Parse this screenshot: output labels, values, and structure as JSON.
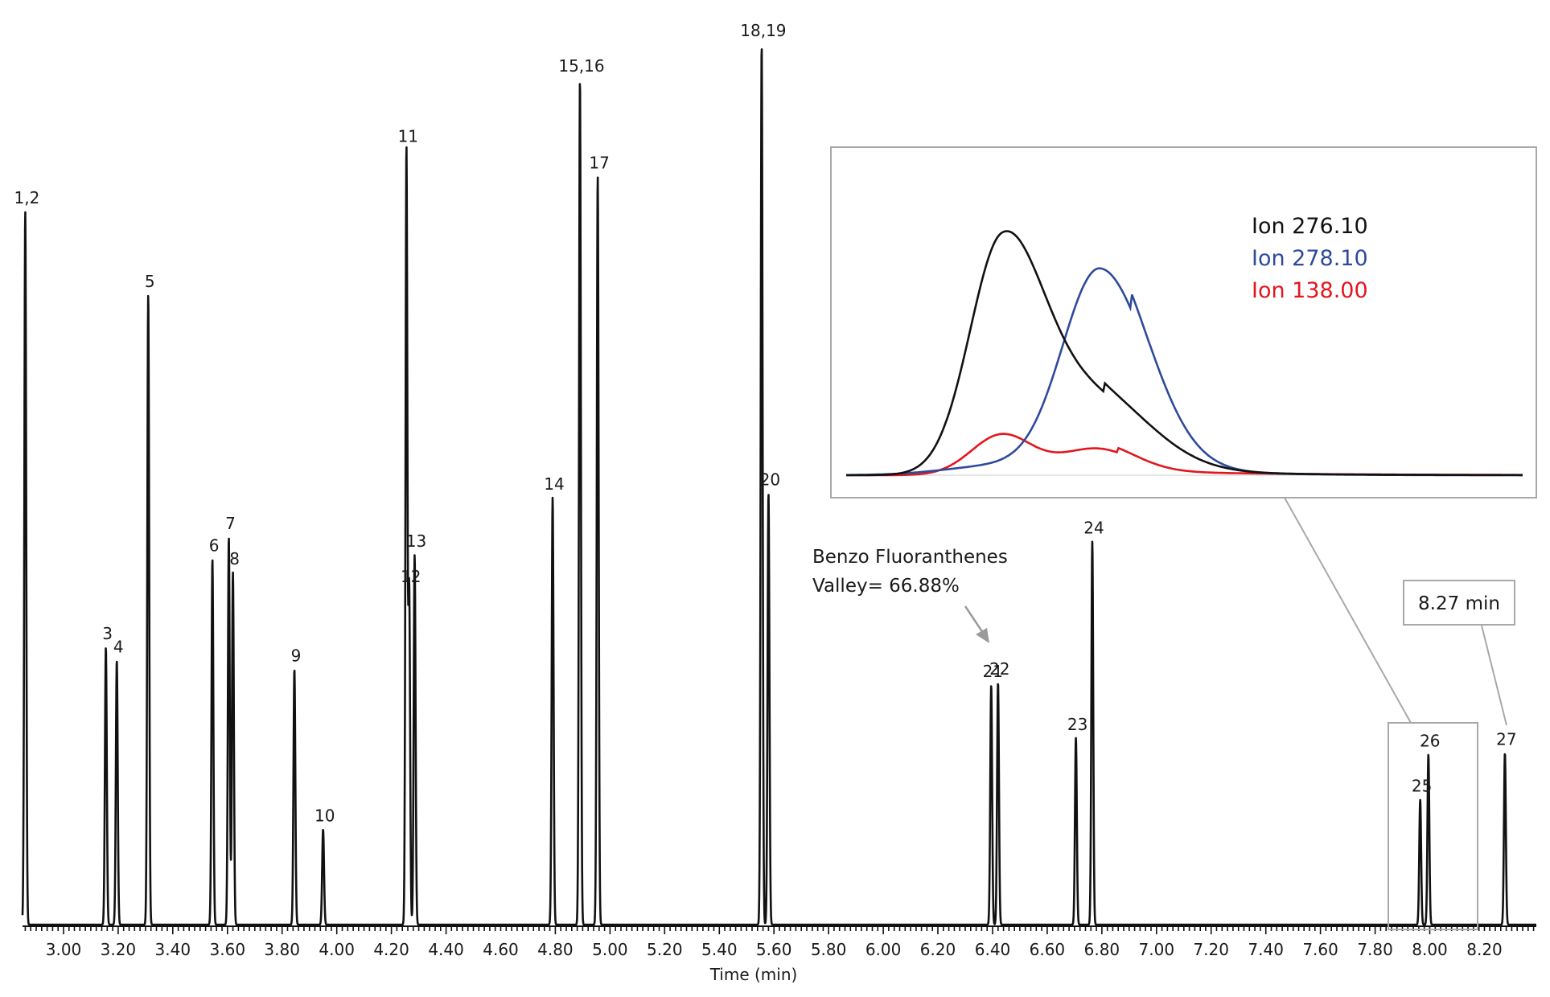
{
  "chart_data": {
    "type": "line",
    "xlabel": "Time (min)",
    "xticks": [
      "3.00",
      "3.20",
      "3.40",
      "3.60",
      "3.80",
      "4.00",
      "4.20",
      "4.40",
      "4.60",
      "4.80",
      "5.00",
      "5.20",
      "5.40",
      "5.60",
      "5.80",
      "6.00",
      "6.20",
      "6.40",
      "6.60",
      "6.80",
      "7.00",
      "7.20",
      "7.40",
      "7.60",
      "7.80",
      "8.00",
      "8.20"
    ],
    "xlim": [
      2.85,
      8.39
    ],
    "peaks": [
      {
        "label": "1,2",
        "rt": 2.86,
        "height": 0.81
      },
      {
        "label": "3",
        "rt": 3.155,
        "height": 0.315
      },
      {
        "label": "4",
        "rt": 3.195,
        "height": 0.3
      },
      {
        "label": "5",
        "rt": 3.31,
        "height": 0.715
      },
      {
        "label": "6",
        "rt": 3.545,
        "height": 0.415
      },
      {
        "label": "7",
        "rt": 3.605,
        "height": 0.44
      },
      {
        "label": "8",
        "rt": 3.62,
        "height": 0.4
      },
      {
        "label": "9",
        "rt": 3.845,
        "height": 0.29
      },
      {
        "label": "10",
        "rt": 3.95,
        "height": 0.108
      },
      {
        "label": "11",
        "rt": 4.255,
        "height": 0.88
      },
      {
        "label": "12",
        "rt": 4.265,
        "height": 0.38
      },
      {
        "label": "13",
        "rt": 4.285,
        "height": 0.42
      },
      {
        "label": "14",
        "rt": 4.79,
        "height": 0.485
      },
      {
        "label": "15,16",
        "rt": 4.89,
        "height": 0.96
      },
      {
        "label": "17",
        "rt": 4.955,
        "height": 0.85
      },
      {
        "label": "18,19",
        "rt": 5.555,
        "height": 1.0
      },
      {
        "label": "20",
        "rt": 5.58,
        "height": 0.49
      },
      {
        "label": "21",
        "rt": 6.395,
        "height": 0.272
      },
      {
        "label": "22",
        "rt": 6.42,
        "height": 0.275
      },
      {
        "label": "23",
        "rt": 6.705,
        "height": 0.212
      },
      {
        "label": "24",
        "rt": 6.765,
        "height": 0.435
      },
      {
        "label": "25",
        "rt": 7.965,
        "height": 0.142
      },
      {
        "label": "26",
        "rt": 7.995,
        "height": 0.193
      },
      {
        "label": "27",
        "rt": 8.275,
        "height": 0.195
      }
    ]
  },
  "annotation": {
    "line1": "Benzo Fluoranthenes",
    "line2": "Valley= 66.88%"
  },
  "callout": {
    "label": "8.27 min"
  },
  "inset": {
    "series": [
      {
        "name": "Ion 276.10",
        "color": "#111111"
      },
      {
        "name": "Ion 278.10",
        "color": "#2f4a9c"
      },
      {
        "name": "Ion 138.00",
        "color": "#e3161e"
      }
    ]
  }
}
